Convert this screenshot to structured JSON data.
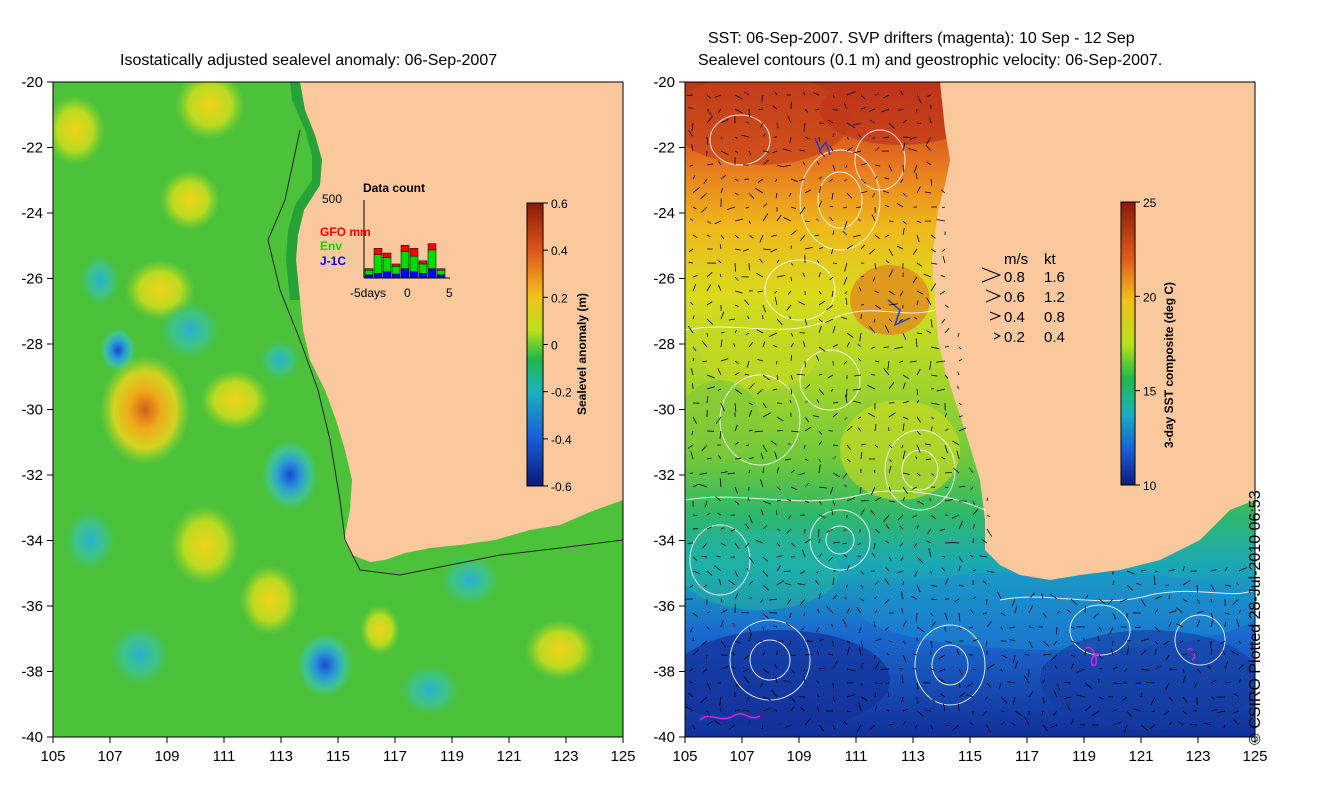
{
  "left_panel": {
    "title": "Isostatically adjusted sealevel anomaly: 06-Sep-2007",
    "y_ticks": [
      "-20",
      "-22",
      "-24",
      "-26",
      "-28",
      "-30",
      "-32",
      "-34",
      "-36",
      "-38",
      "-40"
    ],
    "x_ticks": [
      "105",
      "107",
      "109",
      "111",
      "113",
      "115",
      "117",
      "119",
      "121",
      "123",
      "125"
    ],
    "colorbar": {
      "label": "Sealevel anomaly (m)",
      "ticks": [
        "0.6",
        "0.4",
        "0.2",
        "0",
        "-0.2",
        "-0.4",
        "-0.6"
      ]
    },
    "inset": {
      "title": "Data count",
      "ymax_label": "500",
      "legend": [
        {
          "label": "GFO mm",
          "color": "#ff0000"
        },
        {
          "label": "Env",
          "color": "#00dd00"
        },
        {
          "label": "J-1C",
          "color": "#0000ff"
        }
      ],
      "x_labels": [
        "-5days",
        "0",
        "5"
      ],
      "bars": [
        {
          "j1c": 20,
          "env": 30,
          "gfo": 10
        },
        {
          "j1c": 30,
          "env": 120,
          "gfo": 40
        },
        {
          "j1c": 40,
          "env": 90,
          "gfo": 30
        },
        {
          "j1c": 25,
          "env": 50,
          "gfo": 15
        },
        {
          "j1c": 60,
          "env": 110,
          "gfo": 40
        },
        {
          "j1c": 40,
          "env": 100,
          "gfo": 50
        },
        {
          "j1c": 30,
          "env": 60,
          "gfo": 20
        },
        {
          "j1c": 60,
          "env": 120,
          "gfo": 40
        },
        {
          "j1c": 20,
          "env": 30,
          "gfo": 10
        }
      ]
    }
  },
  "right_panel": {
    "title_line1": "SST: 06-Sep-2007. SVP drifters (magenta): 10 Sep - 12 Sep",
    "title_line2": "Sealevel contours (0.1 m) and geostrophic velocity: 06-Sep-2007.",
    "y_ticks": [
      "-20",
      "-22",
      "-24",
      "-26",
      "-28",
      "-30",
      "-32",
      "-34",
      "-36",
      "-38",
      "-40"
    ],
    "x_ticks": [
      "105",
      "107",
      "109",
      "111",
      "113",
      "115",
      "117",
      "119",
      "121",
      "123",
      "125"
    ],
    "colorbar": {
      "label": "3-day SST composite (deg C)",
      "ticks": [
        "25",
        "20",
        "15",
        "10"
      ]
    },
    "velocity_legend": {
      "header_ms": "m/s",
      "header_kt": "kt",
      "rows": [
        {
          "ms": "0.8",
          "kt": "1.6"
        },
        {
          "ms": "0.6",
          "kt": "1.2"
        },
        {
          "ms": "0.4",
          "kt": "0.8"
        },
        {
          "ms": "0.2",
          "kt": "0.4"
        }
      ]
    }
  },
  "credit": "© CSIRO Plotted 28-Jul-2010 06:53",
  "colors": {
    "land": "#f9c89c",
    "sla_base": "#33bb33",
    "sst_warm": "#c0391b",
    "sst_cool": "#1a3aa8"
  }
}
